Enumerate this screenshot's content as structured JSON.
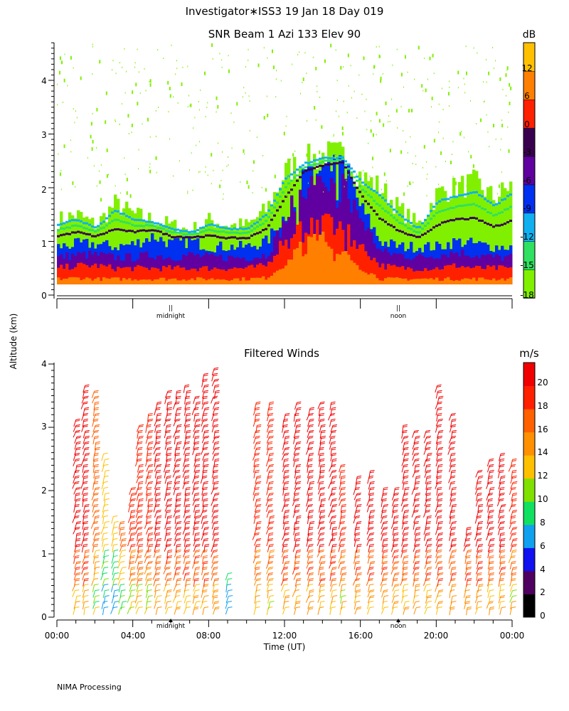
{
  "header": {
    "title": "Investigator∗ISS3  19 Jan 18 Day 019",
    "y_axis_label": "Altitude (km)",
    "footer": "NIMA Processing"
  },
  "colors": {
    "snr": [
      "#80f000",
      "#30e060",
      "#10b0f0",
      "#0030f0",
      "#6000a0",
      "#3a0050",
      "#ff2000",
      "#ff8000",
      "#ffc000"
    ],
    "wind": [
      "#000000",
      "#500060",
      "#1010f0",
      "#10a0f0",
      "#10e060",
      "#80e000",
      "#ffc000",
      "#ff9000",
      "#ff6000",
      "#ff2000",
      "#f00000"
    ]
  },
  "chart_data": [
    {
      "type": "heatmap",
      "title": "SNR Beam 1 Azi 133 Elev 90",
      "xlabel": "",
      "ylabel": "Altitude (km)",
      "ylim": [
        0,
        4.7
      ],
      "y_ticks": [
        "0",
        "1",
        "2",
        "3",
        "4"
      ],
      "time_markers": [
        "midnight",
        "noon"
      ],
      "colorbar": {
        "unit": "dB",
        "tick_labels": [
          "12",
          "6",
          "0",
          "-3",
          "-6",
          "-9",
          "-12",
          "-15",
          "-18"
        ],
        "levels": [
          -18,
          -15,
          -12,
          -9,
          -6,
          -3,
          0,
          6,
          12,
          16
        ]
      },
      "profile": {
        "x_hours": [
          0,
          1,
          2,
          3,
          4,
          5,
          6,
          7,
          8,
          9,
          10,
          11,
          12,
          13,
          14,
          15,
          16,
          17,
          18,
          19,
          20,
          21,
          22,
          23,
          24
        ],
        "green_top_km": [
          1.4,
          1.5,
          1.3,
          1.7,
          1.5,
          1.4,
          1.3,
          1.2,
          1.4,
          1.3,
          1.3,
          1.6,
          2.3,
          2.5,
          2.6,
          2.6,
          2.2,
          2.0,
          1.6,
          1.3,
          1.9,
          2.0,
          2.1,
          1.8,
          2.1
        ],
        "blue_top_km": [
          0.9,
          0.95,
          0.95,
          0.9,
          0.95,
          1.1,
          0.95,
          1.0,
          0.9,
          0.9,
          0.9,
          1.0,
          1.5,
          2.2,
          2.3,
          2.4,
          1.6,
          1.0,
          0.9,
          0.9,
          0.9,
          1.0,
          0.95,
          0.9,
          0.9
        ],
        "purple_top_km": [
          0.7,
          0.75,
          0.75,
          0.7,
          0.7,
          0.75,
          0.7,
          0.75,
          0.7,
          0.7,
          0.7,
          0.75,
          1.4,
          2.0,
          2.1,
          2.1,
          1.4,
          0.8,
          0.75,
          0.7,
          0.75,
          0.8,
          0.75,
          0.7,
          0.7
        ],
        "red_top_km": [
          0.5,
          0.55,
          0.55,
          0.5,
          0.5,
          0.5,
          0.5,
          0.5,
          0.5,
          0.5,
          0.5,
          0.55,
          1.1,
          1.3,
          1.4,
          1.2,
          0.9,
          0.55,
          0.5,
          0.5,
          0.5,
          0.55,
          0.5,
          0.5,
          0.5
        ],
        "orange_top_km": [
          0.3,
          0.32,
          0.3,
          0.3,
          0.3,
          0.3,
          0.3,
          0.3,
          0.3,
          0.3,
          0.3,
          0.32,
          0.6,
          1.0,
          1.1,
          0.8,
          0.5,
          0.3,
          0.3,
          0.3,
          0.3,
          0.3,
          0.3,
          0.3,
          0.3
        ]
      }
    },
    {
      "type": "wind-barbs",
      "title": "Filtered Winds",
      "xlabel": "Time (UT)",
      "ylabel": "Altitude (km)",
      "xlim": [
        0,
        24
      ],
      "ylim": [
        0,
        4
      ],
      "x_tick_labels": [
        "00:00",
        "04:00",
        "08:00",
        "12:00",
        "16:00",
        "20:00",
        "00:00"
      ],
      "y_ticks": [
        "0",
        "1",
        "2",
        "3",
        "4"
      ],
      "time_markers": [
        "midnight",
        "noon"
      ],
      "colorbar": {
        "unit": "m/s",
        "tick_labels": [
          "0",
          "2",
          "4",
          "6",
          "8",
          "10",
          "12",
          "14",
          "16",
          "18",
          "20"
        ],
        "min": 0,
        "max": 22
      },
      "profiles": [
        {
          "t": 1.0,
          "top": 3.1,
          "speed": 20
        },
        {
          "t": 1.45,
          "top": 3.7,
          "speed": 20
        },
        {
          "t": 2.0,
          "top": 3.6,
          "speed": 17
        },
        {
          "t": 2.5,
          "top": 2.6,
          "speed": 13
        },
        {
          "t": 3.0,
          "top": 1.6,
          "speed": 12
        },
        {
          "t": 3.4,
          "top": 1.5,
          "speed": 16
        },
        {
          "t": 3.9,
          "top": 2.0,
          "speed": 18
        },
        {
          "t": 4.3,
          "top": 3.0,
          "speed": 19
        },
        {
          "t": 4.8,
          "top": 3.2,
          "speed": 19
        },
        {
          "t": 5.25,
          "top": 3.4,
          "speed": 20
        },
        {
          "t": 5.8,
          "top": 3.6,
          "speed": 20
        },
        {
          "t": 6.3,
          "top": 3.6,
          "speed": 20
        },
        {
          "t": 6.8,
          "top": 3.7,
          "speed": 20
        },
        {
          "t": 7.3,
          "top": 3.5,
          "speed": 20
        },
        {
          "t": 7.75,
          "top": 3.8,
          "speed": 20
        },
        {
          "t": 8.3,
          "top": 3.9,
          "speed": 20
        },
        {
          "t": 9.0,
          "top": 0.7,
          "speed": 9
        },
        {
          "t": 10.5,
          "top": 3.4,
          "speed": 19
        },
        {
          "t": 11.2,
          "top": 3.4,
          "speed": 19
        },
        {
          "t": 12.0,
          "top": 3.2,
          "speed": 20
        },
        {
          "t": 12.6,
          "top": 3.4,
          "speed": 20
        },
        {
          "t": 13.3,
          "top": 3.3,
          "speed": 20
        },
        {
          "t": 13.9,
          "top": 3.4,
          "speed": 20
        },
        {
          "t": 14.5,
          "top": 3.4,
          "speed": 20
        },
        {
          "t": 15.0,
          "top": 2.4,
          "speed": 19
        },
        {
          "t": 15.8,
          "top": 2.2,
          "speed": 20
        },
        {
          "t": 16.5,
          "top": 2.3,
          "speed": 20
        },
        {
          "t": 17.2,
          "top": 2.0,
          "speed": 20
        },
        {
          "t": 17.8,
          "top": 2.0,
          "speed": 20
        },
        {
          "t": 18.3,
          "top": 3.0,
          "speed": 20
        },
        {
          "t": 18.9,
          "top": 2.9,
          "speed": 20
        },
        {
          "t": 19.5,
          "top": 2.9,
          "speed": 20
        },
        {
          "t": 20.1,
          "top": 3.7,
          "speed": 20
        },
        {
          "t": 20.8,
          "top": 3.2,
          "speed": 20
        },
        {
          "t": 21.6,
          "top": 1.4,
          "speed": 20
        },
        {
          "t": 22.2,
          "top": 2.3,
          "speed": 20
        },
        {
          "t": 22.8,
          "top": 2.5,
          "speed": 20
        },
        {
          "t": 23.4,
          "top": 2.6,
          "speed": 20
        },
        {
          "t": 24.0,
          "top": 2.5,
          "speed": 19
        }
      ]
    }
  ]
}
